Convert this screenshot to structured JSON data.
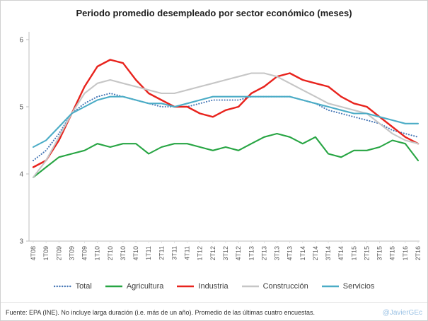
{
  "footer": {
    "source": "Fuente: EPA (INE). No incluye larga duración (i.e. más de un año). Promedio de las últimas cuatro encuestas.",
    "credit": "@JavierGEc",
    "credit_color": "#9cc3e5"
  },
  "chart_data": {
    "type": "line",
    "title": "Periodo promedio desempleado por sector económico (meses)",
    "xlabel": "",
    "ylabel": "",
    "ylim": [
      3,
      6
    ],
    "yticks": [
      3,
      4,
      5,
      6
    ],
    "grid": false,
    "legend_position": "bottom",
    "categories": [
      "4T08",
      "1T09",
      "2T09",
      "3T09",
      "4T09",
      "1T10",
      "2T10",
      "3T10",
      "4T10",
      "1T11",
      "2T11",
      "3T11",
      "4T11",
      "1T12",
      "2T12",
      "3T12",
      "4T12",
      "1T13",
      "2T13",
      "3T13",
      "4T13",
      "1T14",
      "2T14",
      "3T14",
      "4T14",
      "1T15",
      "2T15",
      "3T15",
      "4T15",
      "1T16",
      "2T16"
    ],
    "series": [
      {
        "name": "Total",
        "color": "#4576b5",
        "style": "dotted",
        "values": [
          4.2,
          4.35,
          4.6,
          4.9,
          5.05,
          5.15,
          5.2,
          5.15,
          5.1,
          5.05,
          5.0,
          5.0,
          5.0,
          5.05,
          5.1,
          5.1,
          5.1,
          5.15,
          5.15,
          5.15,
          5.15,
          5.1,
          5.05,
          4.95,
          4.9,
          4.85,
          4.8,
          4.75,
          4.65,
          4.6,
          4.55
        ]
      },
      {
        "name": "Agricultura",
        "color": "#27a543",
        "style": "solid",
        "values": [
          3.95,
          4.1,
          4.25,
          4.3,
          4.35,
          4.45,
          4.4,
          4.45,
          4.45,
          4.3,
          4.4,
          4.45,
          4.45,
          4.4,
          4.35,
          4.4,
          4.35,
          4.45,
          4.55,
          4.6,
          4.55,
          4.45,
          4.55,
          4.3,
          4.25,
          4.35,
          4.35,
          4.4,
          4.5,
          4.45,
          4.2
        ]
      },
      {
        "name": "Industria",
        "color": "#e8231d",
        "style": "solid",
        "values": [
          4.1,
          4.2,
          4.5,
          4.9,
          5.3,
          5.6,
          5.7,
          5.65,
          5.4,
          5.2,
          5.1,
          5.0,
          5.0,
          4.9,
          4.85,
          4.95,
          5.0,
          5.2,
          5.3,
          5.45,
          5.5,
          5.4,
          5.35,
          5.3,
          5.15,
          5.05,
          5.0,
          4.85,
          4.7,
          4.55,
          4.45
        ]
      },
      {
        "name": "Construcción",
        "color": "#c6c6c6",
        "style": "solid",
        "values": [
          3.95,
          4.2,
          4.55,
          4.9,
          5.2,
          5.35,
          5.4,
          5.35,
          5.3,
          5.25,
          5.2,
          5.2,
          5.25,
          5.3,
          5.35,
          5.4,
          5.45,
          5.5,
          5.5,
          5.45,
          5.35,
          5.25,
          5.15,
          5.05,
          5.0,
          4.95,
          4.9,
          4.75,
          4.6,
          4.5,
          4.45
        ]
      },
      {
        "name": "Servicios",
        "color": "#4bacc6",
        "style": "solid",
        "values": [
          4.4,
          4.5,
          4.7,
          4.9,
          5.0,
          5.1,
          5.15,
          5.15,
          5.1,
          5.05,
          5.05,
          5.0,
          5.05,
          5.1,
          5.15,
          5.15,
          5.15,
          5.15,
          5.15,
          5.15,
          5.15,
          5.1,
          5.05,
          5.0,
          4.95,
          4.9,
          4.9,
          4.85,
          4.8,
          4.75,
          4.75
        ]
      }
    ]
  }
}
